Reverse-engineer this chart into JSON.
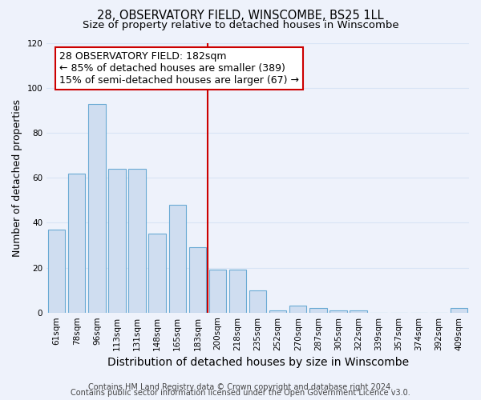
{
  "title": "28, OBSERVATORY FIELD, WINSCOMBE, BS25 1LL",
  "subtitle": "Size of property relative to detached houses in Winscombe",
  "xlabel": "Distribution of detached houses by size in Winscombe",
  "ylabel": "Number of detached properties",
  "bar_labels": [
    "61sqm",
    "78sqm",
    "96sqm",
    "113sqm",
    "131sqm",
    "148sqm",
    "165sqm",
    "183sqm",
    "200sqm",
    "218sqm",
    "235sqm",
    "252sqm",
    "270sqm",
    "287sqm",
    "305sqm",
    "322sqm",
    "339sqm",
    "357sqm",
    "374sqm",
    "392sqm",
    "409sqm"
  ],
  "bar_values": [
    37,
    62,
    93,
    64,
    64,
    35,
    48,
    29,
    19,
    19,
    10,
    1,
    3,
    2,
    1,
    1,
    0,
    0,
    0,
    0,
    2
  ],
  "bar_color": "#cfddf0",
  "bar_edge_color": "#6aaad4",
  "vline_index": 7,
  "ylim": [
    0,
    120
  ],
  "yticks": [
    0,
    20,
    40,
    60,
    80,
    100,
    120
  ],
  "annotation_title": "28 OBSERVATORY FIELD: 182sqm",
  "annotation_line1": "← 85% of detached houses are smaller (389)",
  "annotation_line2": "15% of semi-detached houses are larger (67) →",
  "annotation_box_color": "#ffffff",
  "annotation_box_edge": "#cc0000",
  "vline_color": "#cc0000",
  "footer1": "Contains HM Land Registry data © Crown copyright and database right 2024.",
  "footer2": "Contains public sector information licensed under the Open Government Licence v3.0.",
  "background_color": "#eef2fb",
  "grid_color": "#d8e4f5",
  "title_fontsize": 10.5,
  "subtitle_fontsize": 9.5,
  "xlabel_fontsize": 10,
  "ylabel_fontsize": 9,
  "tick_fontsize": 7.5,
  "annotation_fontsize": 9,
  "footer_fontsize": 7
}
